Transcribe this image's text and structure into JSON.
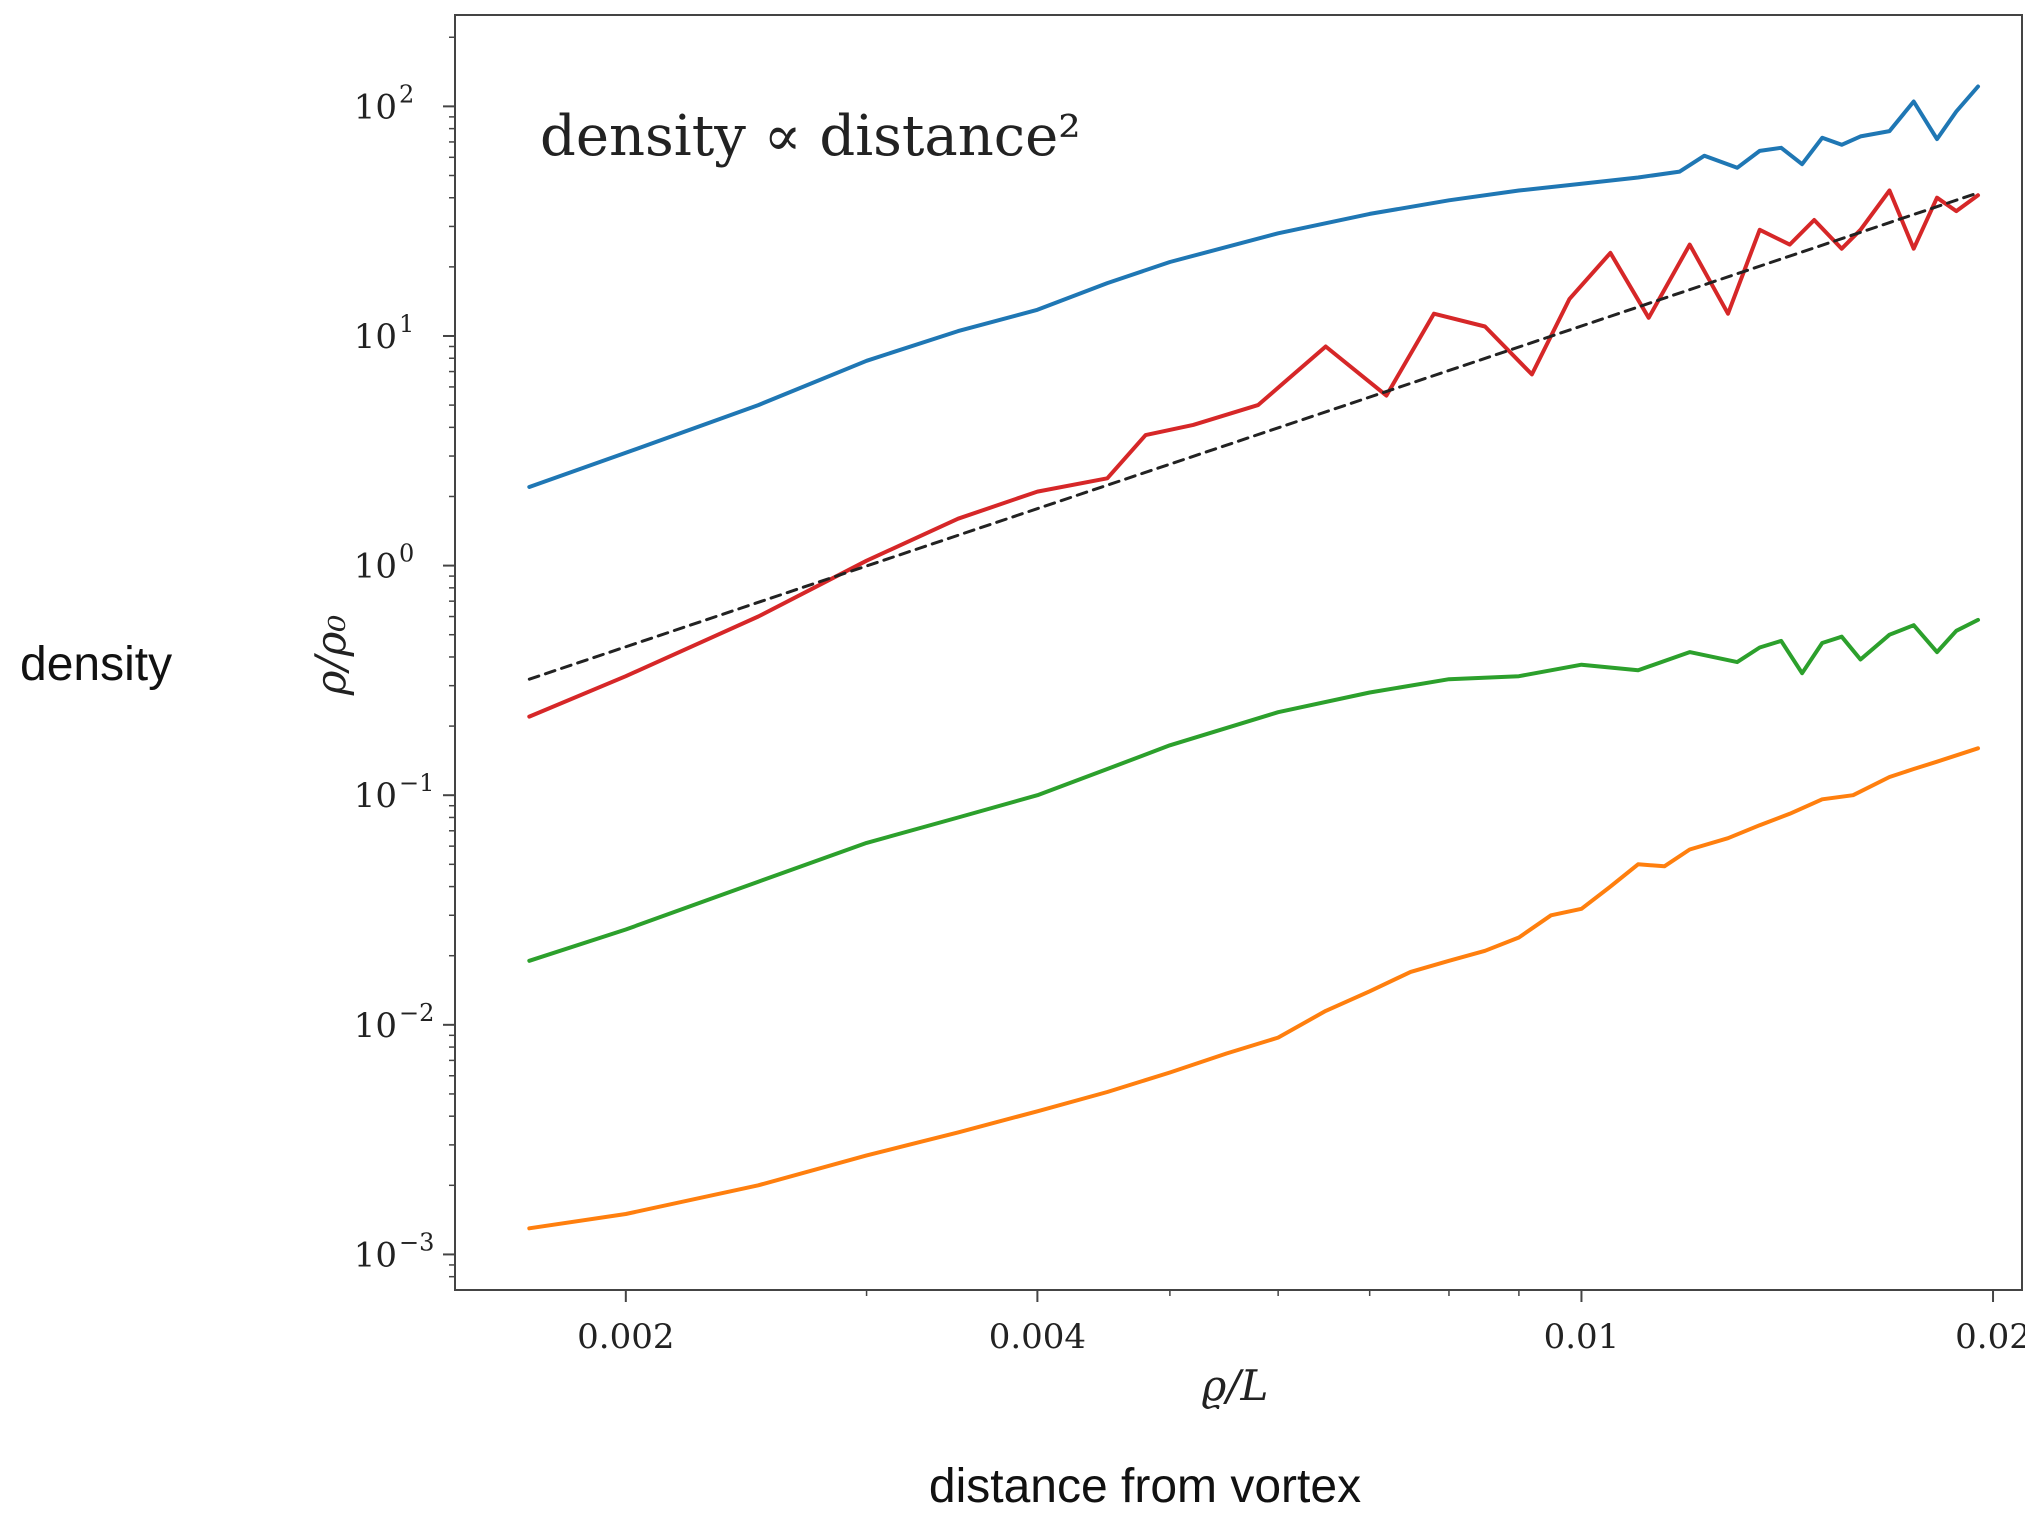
{
  "chart_data": {
    "type": "line",
    "annotation": "density  ∝  distance²",
    "xlabel": "ϱ/L",
    "ylabel": "ρ/ρ₀",
    "outer_xlabel": "distance from vortex",
    "outer_ylabel": "density",
    "xscale": "log",
    "yscale": "log",
    "xlim": [
      0.0015,
      0.021
    ],
    "ylim": [
      0.0007,
      250
    ],
    "grid": false,
    "xticks": [
      {
        "value": 0.002,
        "label": "0.002"
      },
      {
        "value": 0.004,
        "label": "0.004"
      },
      {
        "value": 0.01,
        "label": "0.01"
      },
      {
        "value": 0.02,
        "label": "0.02"
      }
    ],
    "yticks": [
      {
        "value": 0.001,
        "base": "10",
        "exp": "−3"
      },
      {
        "value": 0.01,
        "base": "10",
        "exp": "−2"
      },
      {
        "value": 0.1,
        "base": "10",
        "exp": "−1"
      },
      {
        "value": 1,
        "base": "10",
        "exp": "0"
      },
      {
        "value": 10,
        "base": "10",
        "exp": "1"
      },
      {
        "value": 100,
        "base": "10",
        "exp": "2"
      }
    ],
    "series": [
      {
        "color": "#1f77b4",
        "style": "solid",
        "x": [
          0.0017,
          0.002,
          0.0025,
          0.003,
          0.0035,
          0.004,
          0.0045,
          0.005,
          0.006,
          0.007,
          0.008,
          0.009,
          0.01,
          0.011,
          0.0118,
          0.0123,
          0.013,
          0.0135,
          0.014,
          0.0145,
          0.015,
          0.0155,
          0.016,
          0.0168,
          0.0175,
          0.0182,
          0.0188,
          0.0195
        ],
        "y": [
          2.2,
          3.1,
          5.0,
          7.8,
          10.5,
          13.0,
          17.0,
          21.0,
          28.0,
          34.0,
          39.0,
          43.0,
          46.0,
          49.0,
          52.0,
          61.0,
          54.0,
          64.0,
          66.0,
          56.0,
          73.0,
          68.0,
          74.0,
          78.0,
          105.0,
          72.0,
          95.0,
          122.0
        ]
      },
      {
        "color": "#d62728",
        "style": "solid",
        "x": [
          0.0017,
          0.002,
          0.0025,
          0.003,
          0.0035,
          0.004,
          0.0045,
          0.0048,
          0.0052,
          0.0058,
          0.0065,
          0.0072,
          0.0078,
          0.0085,
          0.0092,
          0.0098,
          0.0105,
          0.0112,
          0.012,
          0.0128,
          0.0135,
          0.0142,
          0.0148,
          0.0155,
          0.016,
          0.0168,
          0.0175,
          0.0182,
          0.0188,
          0.0195
        ],
        "y": [
          0.22,
          0.33,
          0.6,
          1.05,
          1.6,
          2.1,
          2.4,
          3.7,
          4.1,
          5.0,
          9.0,
          5.5,
          12.5,
          11.0,
          6.8,
          14.5,
          23.0,
          12.0,
          25.0,
          12.5,
          29.0,
          25.0,
          32.0,
          24.0,
          29.0,
          43.0,
          24.0,
          40.0,
          35.0,
          41.0
        ]
      },
      {
        "color": "#222222",
        "style": "dashed",
        "x": [
          0.0017,
          0.0195
        ],
        "y": [
          0.32,
          42.0
        ]
      },
      {
        "color": "#2ca02c",
        "style": "solid",
        "x": [
          0.0017,
          0.002,
          0.0025,
          0.003,
          0.0035,
          0.004,
          0.0045,
          0.005,
          0.006,
          0.007,
          0.008,
          0.009,
          0.01,
          0.011,
          0.012,
          0.013,
          0.0135,
          0.014,
          0.0145,
          0.015,
          0.0155,
          0.016,
          0.0168,
          0.0175,
          0.0182,
          0.0188,
          0.0195
        ],
        "y": [
          0.019,
          0.026,
          0.042,
          0.062,
          0.08,
          0.1,
          0.13,
          0.165,
          0.23,
          0.28,
          0.32,
          0.33,
          0.37,
          0.35,
          0.42,
          0.38,
          0.44,
          0.47,
          0.34,
          0.46,
          0.49,
          0.39,
          0.5,
          0.55,
          0.42,
          0.52,
          0.58
        ]
      },
      {
        "color": "#ff7f0e",
        "style": "solid",
        "x": [
          0.0017,
          0.002,
          0.0025,
          0.003,
          0.0035,
          0.004,
          0.0045,
          0.005,
          0.0055,
          0.006,
          0.0065,
          0.007,
          0.0075,
          0.008,
          0.0085,
          0.009,
          0.0095,
          0.01,
          0.0105,
          0.011,
          0.0115,
          0.012,
          0.0128,
          0.0135,
          0.0142,
          0.015,
          0.0158,
          0.0168,
          0.0175,
          0.0182,
          0.0195
        ],
        "y": [
          0.0013,
          0.0015,
          0.002,
          0.0027,
          0.0034,
          0.0042,
          0.0051,
          0.0062,
          0.0075,
          0.0088,
          0.0115,
          0.014,
          0.017,
          0.019,
          0.021,
          0.024,
          0.03,
          0.032,
          0.04,
          0.05,
          0.049,
          0.058,
          0.065,
          0.074,
          0.083,
          0.096,
          0.1,
          0.12,
          0.13,
          0.14,
          0.16
        ]
      }
    ]
  }
}
